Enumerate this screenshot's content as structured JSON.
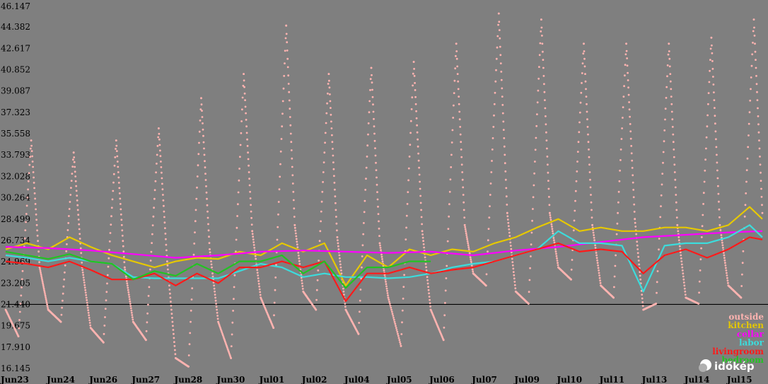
{
  "chart_data": {
    "type": "line",
    "title": "",
    "xlabel": "",
    "ylabel": "",
    "ylim": [
      16.145,
      46.147
    ],
    "yticks": [
      "46.147",
      "44.382",
      "42.617",
      "40.852",
      "39.087",
      "37.323",
      "35.558",
      "33.793",
      "32.028",
      "30.264",
      "28.499",
      "26.734",
      "24.969",
      "23.205",
      "21.440",
      "19.675",
      "17.910",
      "16.145"
    ],
    "xticks": [
      {
        "label": "Jun23",
        "day": 0
      },
      {
        "label": "Jun24",
        "day": 1
      },
      {
        "label": "Jun26",
        "day": 2
      },
      {
        "label": "Jun27",
        "day": 3
      },
      {
        "label": "Jun28",
        "day": 4
      },
      {
        "label": "Jun30",
        "day": 5
      },
      {
        "label": "Jul01",
        "day": 6
      },
      {
        "label": "Jul02",
        "day": 7
      },
      {
        "label": "Jul04",
        "day": 8
      },
      {
        "label": "Jul05",
        "day": 9
      },
      {
        "label": "Jul06",
        "day": 10
      },
      {
        "label": "Jul07",
        "day": 11
      },
      {
        "label": "Jul09",
        "day": 12
      },
      {
        "label": "Jul10",
        "day": 13
      },
      {
        "label": "Jul11",
        "day": 14
      },
      {
        "label": "Jul13",
        "day": 15
      },
      {
        "label": "Jul14",
        "day": 16
      },
      {
        "label": "Jul15",
        "day": 17
      }
    ],
    "xlim": [
      0,
      17.8
    ],
    "reference_line": 21.44,
    "legend_position": "bottom-right",
    "series": [
      {
        "name": "outside",
        "color": "#ffb3b0",
        "style": "dots",
        "x": [
          0,
          0.3,
          0.6,
          0.8,
          1.0,
          1.3,
          1.6,
          1.8,
          2.0,
          2.3,
          2.6,
          2.8,
          3.0,
          3.3,
          3.6,
          3.8,
          4.0,
          4.3,
          4.6,
          4.8,
          5.0,
          5.3,
          5.6,
          5.8,
          6.0,
          6.3,
          6.6,
          6.8,
          7.0,
          7.3,
          7.6,
          7.8,
          8.0,
          8.3,
          8.6,
          8.8,
          9.0,
          9.3,
          9.6,
          9.8,
          10.0,
          10.3,
          10.6,
          10.8,
          11.0,
          11.3,
          11.6,
          11.8,
          12.0,
          12.3,
          12.6,
          12.8,
          13.0,
          13.3,
          13.6,
          13.8,
          14.0,
          14.3,
          14.6,
          14.8,
          15.0,
          15.3,
          15.6,
          15.8,
          16.0,
          16.3,
          16.6,
          16.8,
          17.0,
          17.3,
          17.6,
          17.8
        ],
        "y": [
          21.0,
          18.8,
          35.0,
          24.5,
          21.0,
          20.0,
          34.0,
          24.5,
          19.5,
          18.3,
          35.0,
          24.5,
          20.0,
          18.5,
          36.0,
          25.0,
          17.0,
          16.3,
          38.5,
          26.0,
          20.0,
          17.0,
          40.5,
          27.5,
          22.0,
          19.5,
          44.5,
          28.0,
          22.5,
          21.0,
          40.5,
          27.0,
          21.0,
          19.0,
          41.0,
          26.5,
          22.0,
          18.0,
          41.5,
          27.5,
          21.0,
          18.5,
          43.0,
          28.0,
          24.0,
          23.0,
          45.5,
          29.0,
          22.5,
          21.5,
          45.0,
          29.0,
          24.5,
          23.5,
          43.0,
          28.0,
          23.0,
          22.0,
          43.0,
          28.5,
          21.0,
          21.5,
          43.0,
          28.0,
          22.0,
          21.5,
          43.5,
          28.0,
          23.0,
          22.0,
          45.0,
          29.0
        ]
      },
      {
        "name": "kitchen",
        "color": "#e6c800",
        "style": "line",
        "x": [
          0,
          0.5,
          1.0,
          1.5,
          2.0,
          2.5,
          3.0,
          3.5,
          4.0,
          4.5,
          5.0,
          5.5,
          6.0,
          6.5,
          7.0,
          7.5,
          8.0,
          8.5,
          9.0,
          9.5,
          10.0,
          10.5,
          11.0,
          11.5,
          12.0,
          12.5,
          13.0,
          13.5,
          14.0,
          14.5,
          15.0,
          15.5,
          16.0,
          16.5,
          17.0,
          17.5,
          17.8
        ],
        "y": [
          26.0,
          26.5,
          26.0,
          27.0,
          26.2,
          25.5,
          25.0,
          24.5,
          25.0,
          25.3,
          25.2,
          25.8,
          25.5,
          26.5,
          25.8,
          26.5,
          23.0,
          25.5,
          24.5,
          26.0,
          25.5,
          26.0,
          25.8,
          26.5,
          27.0,
          27.8,
          28.5,
          27.5,
          27.8,
          27.5,
          27.5,
          27.8,
          27.8,
          27.5,
          28.0,
          29.5,
          28.5
        ]
      },
      {
        "name": "cellar",
        "color": "#ff00ff",
        "style": "line",
        "x": [
          0,
          1,
          2,
          3,
          4,
          5,
          6,
          7,
          8,
          9,
          10,
          11,
          12,
          13,
          14,
          15,
          16,
          17,
          17.8
        ],
        "y": [
          26.2,
          26.1,
          25.9,
          25.6,
          25.3,
          25.5,
          25.8,
          25.9,
          25.8,
          25.7,
          25.8,
          25.5,
          25.9,
          26.2,
          26.6,
          27.0,
          27.2,
          27.4,
          27.5
        ]
      },
      {
        "name": "labor",
        "color": "#3cdcdc",
        "style": "line",
        "x": [
          0,
          0.5,
          1.0,
          1.5,
          2.0,
          2.5,
          3.0,
          3.5,
          4.0,
          4.5,
          5.0,
          5.5,
          6.0,
          6.5,
          7.0,
          7.5,
          8.0,
          8.5,
          9.0,
          9.5,
          10.0,
          10.5,
          11.0,
          11.5,
          12.0,
          12.5,
          13.0,
          13.5,
          14.0,
          14.5,
          15.0,
          15.5,
          16.0,
          16.5,
          17.0,
          17.5,
          17.8
        ],
        "y": [
          25.5,
          25.3,
          25.0,
          25.3,
          25.0,
          24.8,
          23.7,
          23.6,
          23.6,
          23.6,
          23.6,
          24.2,
          24.8,
          24.5,
          23.7,
          24.0,
          23.7,
          23.7,
          23.6,
          23.7,
          24.0,
          24.5,
          24.8,
          25.0,
          25.5,
          26.0,
          27.5,
          26.5,
          26.5,
          26.3,
          22.5,
          26.3,
          26.5,
          26.5,
          27.0,
          28.0,
          27.0
        ]
      },
      {
        "name": "livingroom",
        "color": "#ff1a1a",
        "style": "line",
        "x": [
          0,
          0.5,
          1.0,
          1.5,
          2.0,
          2.5,
          3.0,
          3.5,
          4.0,
          4.5,
          5.0,
          5.5,
          6.0,
          6.5,
          7.0,
          7.5,
          8.0,
          8.5,
          9.0,
          9.5,
          10.0,
          10.5,
          11.0,
          11.5,
          12.0,
          12.5,
          13.0,
          13.5,
          14.0,
          14.5,
          15.0,
          15.5,
          16.0,
          16.5,
          17.0,
          17.5,
          17.8
        ],
        "y": [
          25.0,
          24.8,
          24.5,
          25.0,
          24.3,
          23.5,
          23.5,
          24.0,
          23.0,
          24.0,
          23.2,
          24.5,
          24.5,
          25.0,
          24.5,
          25.0,
          21.7,
          24.0,
          24.0,
          24.5,
          24.0,
          24.3,
          24.5,
          25.0,
          25.5,
          26.0,
          26.5,
          25.8,
          26.0,
          25.8,
          24.0,
          25.5,
          26.0,
          25.3,
          26.0,
          27.0,
          26.8
        ]
      },
      {
        "name": "bedroom",
        "color": "#22c322",
        "style": "line",
        "x": [
          0,
          0.5,
          1.0,
          1.5,
          2.0,
          2.5,
          3.0,
          3.5,
          4.0,
          4.5,
          5.0,
          5.5,
          6.0,
          6.5,
          7.0,
          7.5,
          8.0,
          8.5,
          9.0,
          9.5,
          10.0
        ],
        "y": [
          25.8,
          25.5,
          25.2,
          25.6,
          25.0,
          24.8,
          23.5,
          24.2,
          23.8,
          24.8,
          24.0,
          25.0,
          25.0,
          25.5,
          24.0,
          25.0,
          22.8,
          24.5,
          24.5,
          25.0,
          25.0
        ]
      }
    ]
  },
  "watermark": {
    "text": "időkép"
  }
}
